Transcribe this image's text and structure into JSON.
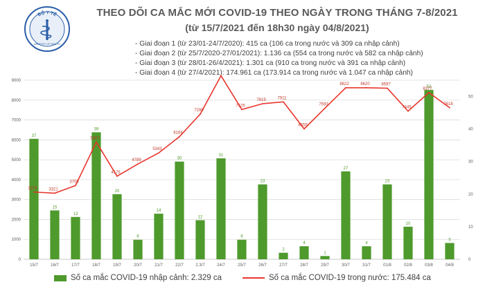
{
  "logo": {
    "arc_text": "BỘ Y TẾ",
    "bottom_text": "MINISTRY OF HEALTH",
    "icon": "ministry-of-health-emblem"
  },
  "title": "THEO DÕI CA MẮC MỚI COVID-19 THEO NGÀY TRONG THÁNG 7-8/2021",
  "subtitle": "(từ 15/7/2021 đến 18h30 ngày 04/8/2021)",
  "periods": [
    "- Giai đoạn 1 (từ 23/01-24/7/2020): 415 ca (106 ca trong nước và 309 ca nhập cảnh)",
    "- Giai đoạn 2 (từ 25/7/2020-27/01/2021): 1.136 ca (554 ca trong nước và 582 ca nhập cảnh)",
    "- Giai đoạn 3 (từ 28/01-26/4/2021): 1.301 ca (910 ca trong nước và 391 ca nhập cảnh)",
    "- Giai đoạn 4 (từ 27/4/2021): 174.961 ca (173.914 ca trong nước và 1.047 ca nhập cảnh)"
  ],
  "colors": {
    "bar": "#4e9a2c",
    "line": "#e8352c",
    "grid": "#dcdcdc",
    "title": "#5a5a5a"
  },
  "chart_data": {
    "type": "bar",
    "categories": [
      "15/7",
      "16/7",
      "17/7",
      "18/7",
      "19/7",
      "20/7",
      "21/7",
      "22/7",
      "2.3/7",
      "24/7",
      "25/7",
      "26/7",
      "27/7",
      "28/7",
      "29/7",
      "30/7",
      "31/7",
      "01/8",
      "02/8",
      "03/8",
      "04/8"
    ],
    "series": [
      {
        "name": "Số ca mắc COVID-19 nhập cảnh: 2.329 ca",
        "type": "bar",
        "axis": "right",
        "values": [
          37,
          15,
          13,
          39,
          20,
          6,
          14,
          30,
          12,
          31,
          6,
          23,
          2,
          4,
          1,
          27,
          4,
          23,
          10,
          52,
          5
        ]
      },
      {
        "name": "Số ca mắc COVID-19 trong nước: 175.484 ca",
        "type": "line",
        "axis": "left",
        "values": [
          3379,
          3321,
          3705,
          5887,
          4175,
          4789,
          5343,
          6164,
          7295,
          9225,
          7525,
          7819,
          7911,
          6555,
          7593,
          8622,
          8620,
          8597,
          7445,
          8377,
          7618
        ]
      }
    ],
    "y_left": {
      "ylim": [
        0,
        9000
      ],
      "ticks": [
        "0",
        "1000",
        "2000",
        "3000",
        "4000",
        "5000",
        "6000",
        "7000",
        "8000",
        "9000"
      ]
    },
    "y_right": {
      "ylim": [
        0,
        55
      ],
      "ticks": [
        "0",
        "10",
        "20",
        "30",
        "40",
        "50"
      ]
    },
    "grid": true,
    "legend_position": "bottom"
  }
}
